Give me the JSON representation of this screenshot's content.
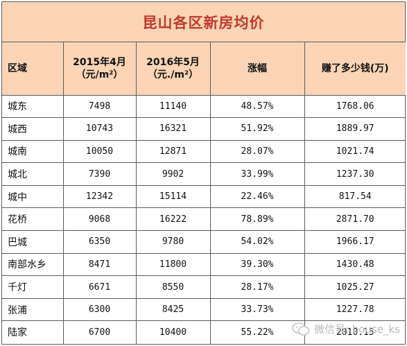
{
  "title": "昆山各区新房均价",
  "headers": {
    "district": "区域",
    "price_2015": "2015年4月\n（元/m²）",
    "price_2016": "2016年5月\n（元./m²）",
    "increase": "涨幅",
    "earned": "赚了多少钱(万)"
  },
  "rows": [
    {
      "district": "城东",
      "p2015": "7498",
      "p2016": "11140",
      "inc": "48.57%",
      "earn": "1768.06"
    },
    {
      "district": "城西",
      "p2015": "10743",
      "p2016": "16321",
      "inc": "51.92%",
      "earn": "1889.97"
    },
    {
      "district": "城南",
      "p2015": "10050",
      "p2016": "12871",
      "inc": "28.07%",
      "earn": "1021.74"
    },
    {
      "district": "城北",
      "p2015": "7390",
      "p2016": "9902",
      "inc": "33.99%",
      "earn": "1237.30"
    },
    {
      "district": "城中",
      "p2015": "12342",
      "p2016": "15114",
      "inc": "22.46%",
      "earn": "817.54"
    },
    {
      "district": "花桥",
      "p2015": "9068",
      "p2016": "16222",
      "inc": "78.89%",
      "earn": "2871.70"
    },
    {
      "district": "巴城",
      "p2015": "6350",
      "p2016": "9780",
      "inc": "54.02%",
      "earn": "1966.17"
    },
    {
      "district": "南部水乡",
      "p2015": "8471",
      "p2016": "11800",
      "inc": "39.30%",
      "earn": "1430.48"
    },
    {
      "district": "千灯",
      "p2015": "6671",
      "p2016": "8550",
      "inc": "28.17%",
      "earn": "1025.27"
    },
    {
      "district": "张浦",
      "p2015": "6300",
      "p2016": "8425",
      "inc": "33.73%",
      "earn": "1227.78"
    },
    {
      "district": "陆家",
      "p2015": "6700",
      "p2016": "10400",
      "inc": "55.22%",
      "earn": "2010.15"
    }
  ],
  "watermark": "微信号: house_ks",
  "colors": {
    "header_bg": "#fbd5b5",
    "title_text": "#c0392b",
    "border": "#5b5b5b"
  }
}
